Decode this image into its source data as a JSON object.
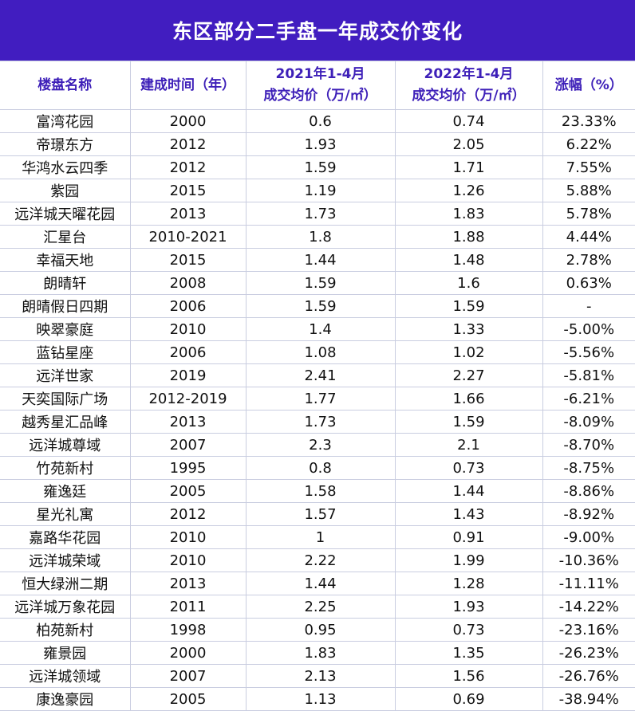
{
  "title": "东区部分二手盘一年成交价变化",
  "headers": [
    {
      "line1": "楼盘名称",
      "line2": ""
    },
    {
      "line1": "建成时间（年）",
      "line2": ""
    },
    {
      "line1": "2021年1-4月",
      "line2": "成交均价（万/㎡）"
    },
    {
      "line1": "2022年1-4月",
      "line2": "成交均价（万/㎡）"
    },
    {
      "line1": "涨幅（%）",
      "line2": ""
    }
  ],
  "rows": [
    [
      "富湾花园",
      "2000",
      "0.6",
      "0.74",
      "23.33%"
    ],
    [
      "帝璟东方",
      "2012",
      "1.93",
      "2.05",
      "6.22%"
    ],
    [
      "华鸿水云四季",
      "2012",
      "1.59",
      "1.71",
      "7.55%"
    ],
    [
      "紫园",
      "2015",
      "1.19",
      "1.26",
      "5.88%"
    ],
    [
      "远洋城天曜花园",
      "2013",
      "1.73",
      "1.83",
      "5.78%"
    ],
    [
      "汇星台",
      "2010-2021",
      "1.8",
      "1.88",
      "4.44%"
    ],
    [
      "幸福天地",
      "2015",
      "1.44",
      "1.48",
      "2.78%"
    ],
    [
      "朗晴轩",
      "2008",
      "1.59",
      "1.6",
      "0.63%"
    ],
    [
      "朗晴假日四期",
      "2006",
      "1.59",
      "1.59",
      "-"
    ],
    [
      "映翠豪庭",
      "2010",
      "1.4",
      "1.33",
      "-5.00%"
    ],
    [
      "蓝钻星座",
      "2006",
      "1.08",
      "1.02",
      "-5.56%"
    ],
    [
      "远洋世家",
      "2019",
      "2.41",
      "2.27",
      "-5.81%"
    ],
    [
      "天奕国际广场",
      "2012-2019",
      "1.77",
      "1.66",
      "-6.21%"
    ],
    [
      "越秀星汇品峰",
      "2013",
      "1.73",
      "1.59",
      "-8.09%"
    ],
    [
      "远洋城尊域",
      "2007",
      "2.3",
      "2.1",
      "-8.70%"
    ],
    [
      "竹苑新村",
      "1995",
      "0.8",
      "0.73",
      "-8.75%"
    ],
    [
      "雍逸廷",
      "2005",
      "1.58",
      "1.44",
      "-8.86%"
    ],
    [
      "星光礼寓",
      "2012",
      "1.57",
      "1.43",
      "-8.92%"
    ],
    [
      "嘉路华花园",
      "2010",
      "1",
      "0.91",
      "-9.00%"
    ],
    [
      "远洋城荣域",
      "2010",
      "2.22",
      "1.99",
      "-10.36%"
    ],
    [
      "恒大绿洲二期",
      "2013",
      "1.44",
      "1.28",
      "-11.11%"
    ],
    [
      "远洋城万象花园",
      "2011",
      "2.25",
      "1.93",
      "-14.22%"
    ],
    [
      "柏苑新村",
      "1998",
      "0.95",
      "0.73",
      "-23.16%"
    ],
    [
      "雍景园",
      "2000",
      "1.83",
      "1.35",
      "-26.23%"
    ],
    [
      "远洋城领域",
      "2007",
      "2.13",
      "1.56",
      "-26.76%"
    ],
    [
      "康逸豪园",
      "2005",
      "1.13",
      "0.69",
      "-38.94%"
    ]
  ],
  "colors": {
    "title_bg": "#411dc0",
    "header_text": "#3d1fb8",
    "border": "#c9cde0"
  }
}
